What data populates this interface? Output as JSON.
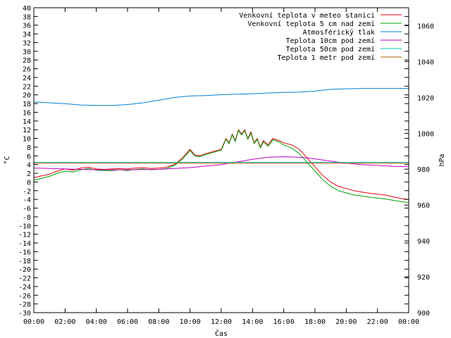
{
  "chart_data": {
    "type": "line",
    "xlabel": "Čas",
    "ylabel": "°C",
    "y2label": "hPa",
    "x_ticks": [
      "00:00",
      "02:00",
      "04:00",
      "06:00",
      "08:00",
      "10:00",
      "12:00",
      "14:00",
      "16:00",
      "18:00",
      "20:00",
      "22:00",
      "00:00"
    ],
    "xlim": [
      0,
      24
    ],
    "ylim": [
      -30,
      40
    ],
    "y_ticks": [
      40,
      38,
      36,
      34,
      32,
      30,
      28,
      26,
      24,
      22,
      20,
      18,
      16,
      14,
      12,
      10,
      8,
      6,
      4,
      2,
      0,
      -2,
      -4,
      -6,
      -8,
      -10,
      -12,
      -14,
      -16,
      -18,
      -20,
      -22,
      -24,
      -26,
      -28,
      -30
    ],
    "y2lim": [
      900,
      1070
    ],
    "y2_ticks": [
      900,
      920,
      940,
      960,
      980,
      1000,
      1020,
      1040,
      1060
    ],
    "grid": false,
    "legend_position": "top-right",
    "series": [
      {
        "name": "Venkovní teplota v meteo stanici",
        "axis": "left",
        "color": "#e8000b",
        "x": [
          0,
          1,
          1.5,
          2,
          2.5,
          3,
          3.5,
          4,
          4.5,
          5,
          5.5,
          6,
          6.5,
          7,
          7.5,
          8,
          8.5,
          9,
          9.5,
          10,
          10.3,
          10.6,
          11,
          11.5,
          12,
          12.3,
          12.5,
          12.7,
          12.9,
          13.1,
          13.3,
          13.5,
          13.7,
          13.9,
          14.1,
          14.3,
          14.5,
          14.7,
          15,
          15.3,
          15.7,
          16,
          16.5,
          17,
          17.5,
          18,
          18.5,
          19,
          19.5,
          20,
          20.5,
          21,
          21.5,
          22,
          22.5,
          23,
          23.5,
          24
        ],
        "y": [
          1,
          1.8,
          2.5,
          3,
          2.7,
          3.2,
          3.4,
          3,
          2.9,
          3,
          3.1,
          3,
          3.2,
          3.3,
          3.1,
          3.2,
          3.4,
          4,
          5.5,
          7.5,
          6.2,
          6,
          6.5,
          7,
          7.5,
          10,
          9,
          11,
          9.5,
          12,
          11,
          12,
          10,
          11.5,
          9,
          10,
          8,
          9.5,
          8.5,
          10,
          9.5,
          9,
          8.5,
          7.5,
          5.5,
          3.5,
          1.5,
          0,
          -1,
          -1.5,
          -2,
          -2.3,
          -2.6,
          -2.8,
          -3,
          -3.4,
          -3.8,
          -4
        ]
      },
      {
        "name": "Venkovní teplota 5 cm nad zemí",
        "axis": "left",
        "color": "#00a000",
        "x": [
          0,
          1,
          1.5,
          2,
          2.5,
          3,
          3.5,
          4,
          4.5,
          5,
          5.5,
          6,
          6.5,
          7,
          7.5,
          8,
          8.5,
          9,
          9.5,
          10,
          10.3,
          10.6,
          11,
          11.5,
          12,
          12.3,
          12.5,
          12.7,
          12.9,
          13.1,
          13.3,
          13.5,
          13.7,
          13.9,
          14.1,
          14.3,
          14.5,
          14.7,
          15,
          15.3,
          15.7,
          16,
          16.5,
          17,
          17.5,
          18,
          18.5,
          19,
          19.5,
          20,
          20.5,
          21,
          21.5,
          22,
          22.5,
          23,
          23.5,
          24
        ],
        "y": [
          0.4,
          1.3,
          2,
          2.5,
          2.3,
          2.8,
          3.1,
          2.7,
          2.6,
          2.6,
          2.8,
          2.6,
          2.9,
          3,
          2.8,
          2.9,
          3.1,
          3.8,
          5.2,
          7.2,
          6,
          5.8,
          6.3,
          6.8,
          7.3,
          9.8,
          8.8,
          10.8,
          9.3,
          11.8,
          10.8,
          11.8,
          9.8,
          11.2,
          8.8,
          9.8,
          7.8,
          9.2,
          8.2,
          9.7,
          9.2,
          8.5,
          7.8,
          6.5,
          4.5,
          2.5,
          0.5,
          -1,
          -2,
          -2.5,
          -3,
          -3.2,
          -3.5,
          -3.7,
          -3.9,
          -4.2,
          -4.5,
          -4.7
        ]
      },
      {
        "name": "Atmosférický tlak",
        "axis": "right",
        "color": "#0080d0",
        "x": [
          0,
          1,
          2,
          3,
          4,
          5,
          6,
          7,
          8,
          9,
          10,
          11,
          12,
          13,
          14,
          15,
          16,
          17,
          18,
          19,
          20,
          21,
          22,
          23,
          24
        ],
        "y": [
          1017.5,
          1017,
          1016.5,
          1015.8,
          1015.5,
          1015.5,
          1016,
          1017,
          1018.5,
          1020,
          1020.8,
          1021,
          1021.5,
          1021.8,
          1022,
          1022.5,
          1022.8,
          1023,
          1023.5,
          1024.5,
          1024.8,
          1025,
          1025,
          1025,
          1025
        ]
      },
      {
        "name": "Teplota 10cm pod zemí",
        "axis": "left",
        "color": "#c000c0",
        "x": [
          0,
          2,
          4,
          6,
          8,
          10,
          12,
          13,
          14,
          15,
          16,
          17,
          18,
          19,
          20,
          21,
          22,
          23,
          24
        ],
        "y": [
          3.2,
          3.0,
          2.8,
          2.8,
          2.9,
          3.3,
          4.0,
          4.6,
          5.2,
          5.7,
          5.8,
          5.7,
          5.3,
          4.8,
          4.3,
          4.0,
          3.8,
          3.6,
          3.5
        ]
      },
      {
        "name": "Teplota 50cm pod zemí",
        "axis": "left",
        "color": "#00c0c0",
        "x": [
          0,
          24
        ],
        "y": [
          4.5,
          4.5
        ]
      },
      {
        "name": "Teplota 1 metr pod zemí",
        "axis": "left",
        "color": "#b06000",
        "x": [
          0,
          24
        ],
        "y": [
          4.3,
          4.3
        ]
      }
    ]
  }
}
